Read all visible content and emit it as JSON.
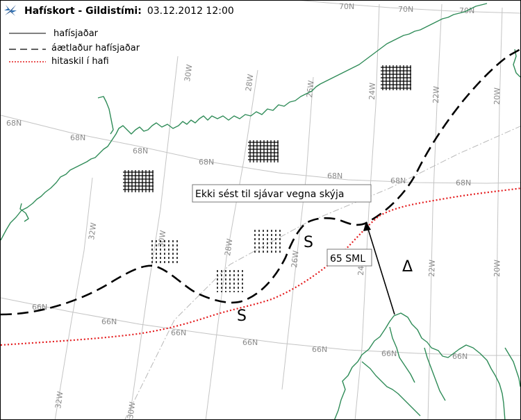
{
  "header": {
    "title_bold": "Hafískort - Gildistími:",
    "valid_time": "03.12.2012 12:00"
  },
  "legend": {
    "items": [
      {
        "label": "hafísjaðar",
        "style": "solid",
        "color": "#000000"
      },
      {
        "label": "áætlaður hafísjaðar",
        "style": "dashed",
        "color": "#000000"
      },
      {
        "label": "hitaskil í hafi",
        "style": "dotted",
        "color": "#e41a1c"
      }
    ]
  },
  "grid_labels": {
    "lat_70": "70N",
    "lat_68": "68N",
    "lat_66": "66N",
    "lon_32": "32W",
    "lon_30": "30W",
    "lon_28": "28W",
    "lon_26": "26W",
    "lon_24": "24W",
    "lon_22": "22W",
    "lon_20": "20W"
  },
  "annotations": {
    "cloud_note": "Ekki sést til sjávar vegna skýja",
    "distance_note": "65 SML",
    "triangle_symbol": "Δ",
    "s_symbol": "S"
  },
  "colors": {
    "coast": "#2e8b57",
    "grid": "#c4c4c4",
    "front": "#e41a1c",
    "logo": "#1e4f8a"
  }
}
